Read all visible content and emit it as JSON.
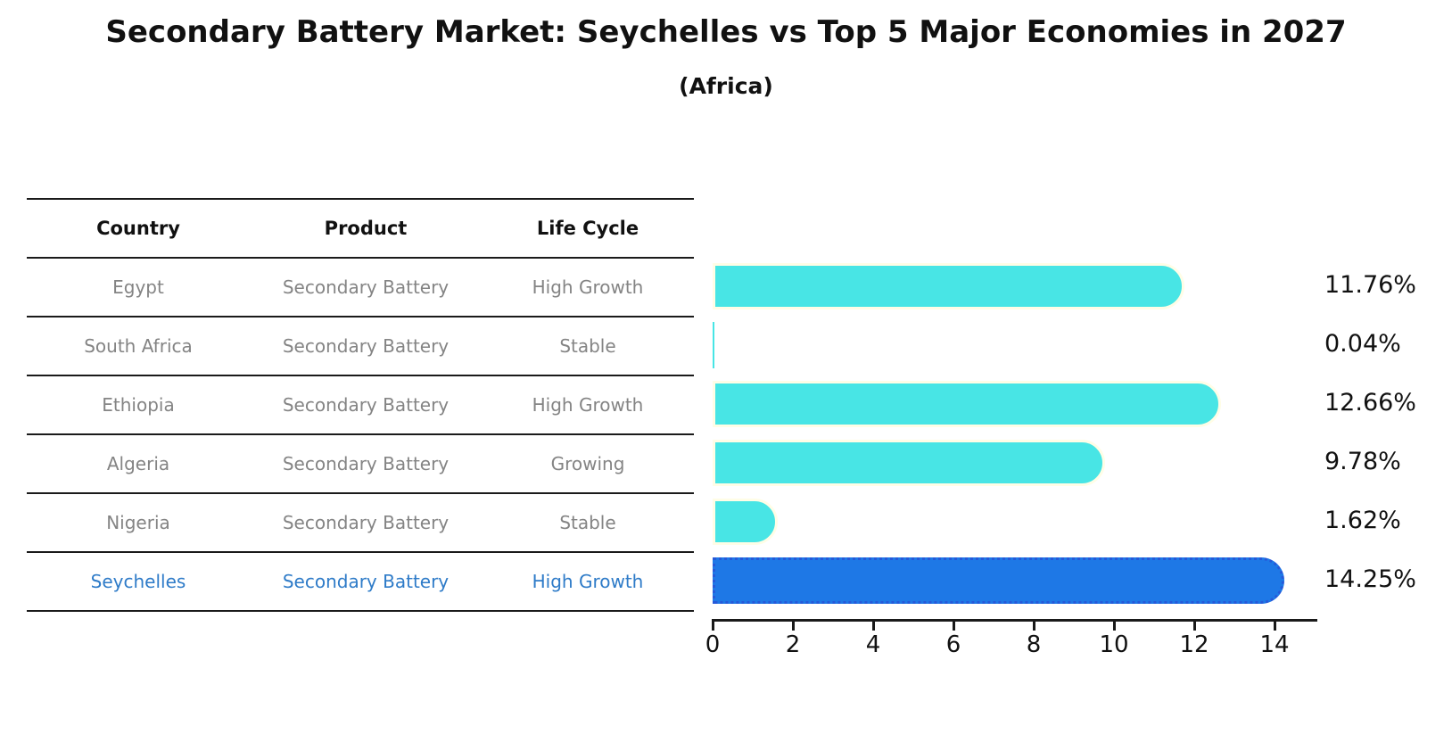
{
  "title": "Secondary Battery Market: Seychelles vs Top 5 Major Economies in 2027",
  "subtitle": "(Africa)",
  "table": {
    "headers": [
      "Country",
      "Product",
      "Life Cycle"
    ],
    "rows": [
      {
        "country": "Egypt",
        "product": "Secondary Battery",
        "life_cycle": "High Growth",
        "highlight": false
      },
      {
        "country": "South Africa",
        "product": "Secondary Battery",
        "life_cycle": "Stable",
        "highlight": false
      },
      {
        "country": "Ethiopia",
        "product": "Secondary Battery",
        "life_cycle": "High Growth",
        "highlight": false
      },
      {
        "country": "Algeria",
        "product": "Secondary Battery",
        "life_cycle": "Growing",
        "highlight": false
      },
      {
        "country": "Nigeria",
        "product": "Secondary Battery",
        "life_cycle": "Stable",
        "highlight": false
      },
      {
        "country": "Seychelles",
        "product": "Secondary Battery",
        "life_cycle": "High Growth",
        "highlight": true
      }
    ]
  },
  "chart_data": {
    "type": "bar",
    "orientation": "horizontal",
    "title": "Secondary Battery Market: Seychelles vs Top 5 Major Economies in 2027",
    "subtitle": "(Africa)",
    "categories": [
      "Egypt",
      "South Africa",
      "Ethiopia",
      "Algeria",
      "Nigeria",
      "Seychelles"
    ],
    "values": [
      11.76,
      0.04,
      12.66,
      9.78,
      1.62,
      14.25
    ],
    "value_labels": [
      "11.76%",
      "0.04%",
      "12.66%",
      "9.78%",
      "1.62%",
      "14.25%"
    ],
    "highlight_index": 5,
    "x_ticks": [
      0,
      2,
      4,
      6,
      8,
      10,
      12,
      14
    ],
    "x_tick_labels": [
      "0",
      "2",
      "4",
      "6",
      "8",
      "10",
      "12",
      "14"
    ],
    "xlim": [
      0,
      15
    ],
    "grid": false,
    "legend": "none",
    "bar_color": "#48E5E5",
    "bar_edge_color": "#FFFDE6",
    "highlight_bar_color": "#1E78E6",
    "highlight_edge_color": "#2659D9"
  },
  "colors": {
    "background": "#ffffff",
    "title_text": "#111111",
    "table_text_gray": "#848484",
    "table_line": "#1a1a1a",
    "highlight_text": "#2E7BC8"
  }
}
